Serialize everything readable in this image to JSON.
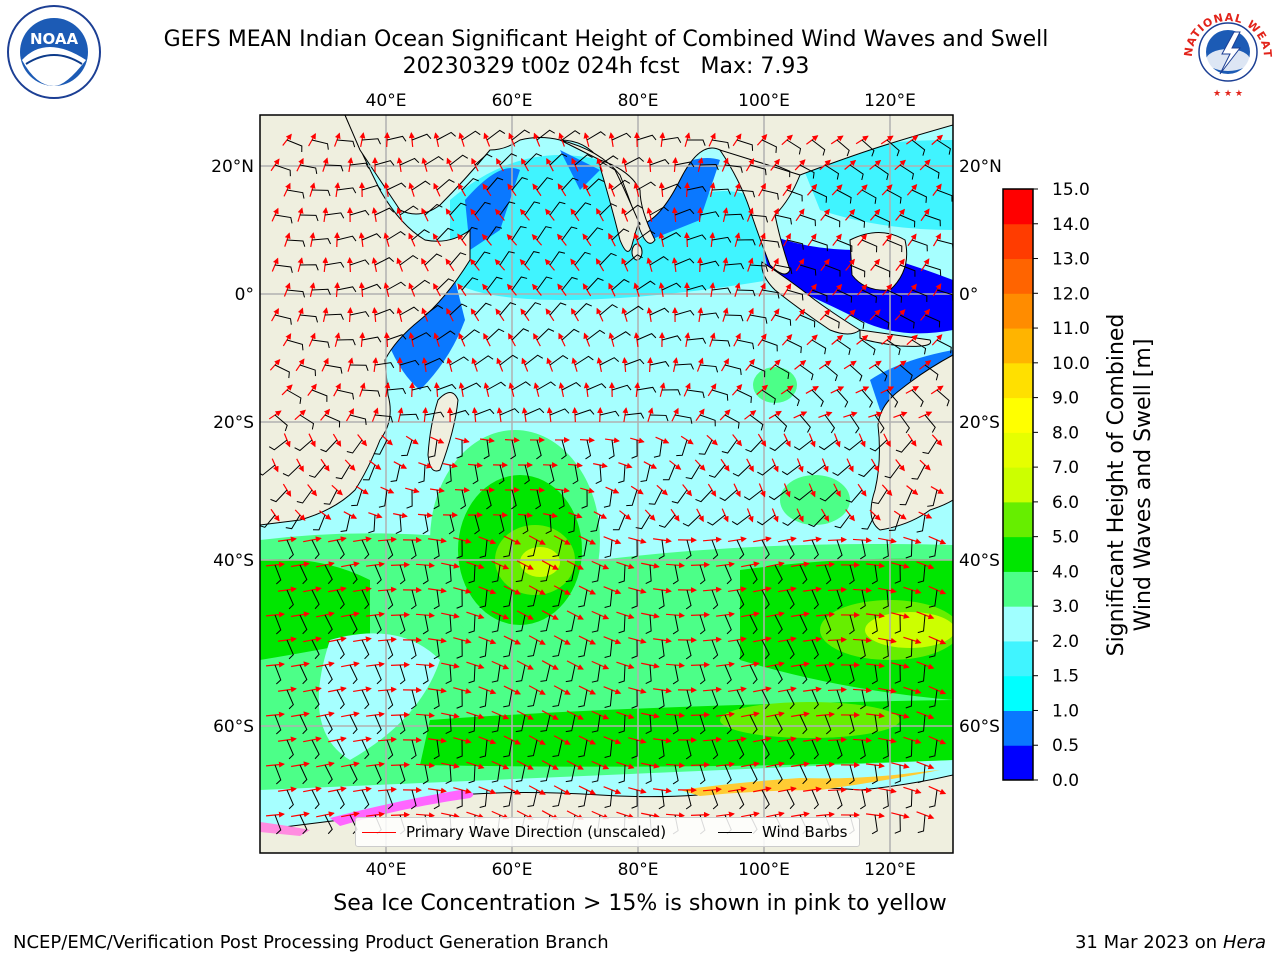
{
  "title": {
    "line1": "GEFS MEAN Indian Ocean Significant Height of Combined Wind Waves and Swell",
    "line2": "20230329 t00z 024h fcst   Max: 7.93"
  },
  "map": {
    "lon_range": [
      20,
      130
    ],
    "lat_range": [
      -75,
      28
    ],
    "lon_ticks": [
      "40°E",
      "60°E",
      "80°E",
      "100°E",
      "120°E"
    ],
    "lat_ticks": [
      "20°N",
      "0°",
      "20°S",
      "40°S",
      "60°S"
    ],
    "colors": {
      "land": "#efefdf",
      "frame": "#000000",
      "grid": "#b0b0b0"
    }
  },
  "legend": {
    "wave_direction": "Primary Wave Direction (unscaled)",
    "wind_barbs": "Wind Barbs"
  },
  "colorbar": {
    "title_line1": "Significant Height of Combined",
    "title_line2": "Wind Waves and Swell [m]",
    "levels": [
      "0.0",
      "0.5",
      "1.0",
      "1.5",
      "2.0",
      "3.0",
      "4.0",
      "5.0",
      "6.0",
      "7.0",
      "8.0",
      "9.0",
      "10.0",
      "11.0",
      "12.0",
      "13.0",
      "14.0",
      "15.0"
    ],
    "colors": [
      "#0000ff",
      "#0a78ff",
      "#00ffff",
      "#40f4ff",
      "#a0ffff",
      "#4cff88",
      "#00e600",
      "#66ee00",
      "#ccff00",
      "#e6ff00",
      "#ffff00",
      "#ffe000",
      "#ffb400",
      "#ff8c00",
      "#ff6400",
      "#ff3c00",
      "#ff0000"
    ]
  },
  "footer_note": "Sea Ice Concentration > 15% is shown in pink to yellow",
  "credits": {
    "left": "NCEP/EMC/Verification Post Processing Product Generation Branch",
    "right_date": "31 Mar 2023 on",
    "right_host": "Hera"
  },
  "logos": {
    "left": "NOAA",
    "right": "NATIONAL WEATHER SERVICE"
  }
}
